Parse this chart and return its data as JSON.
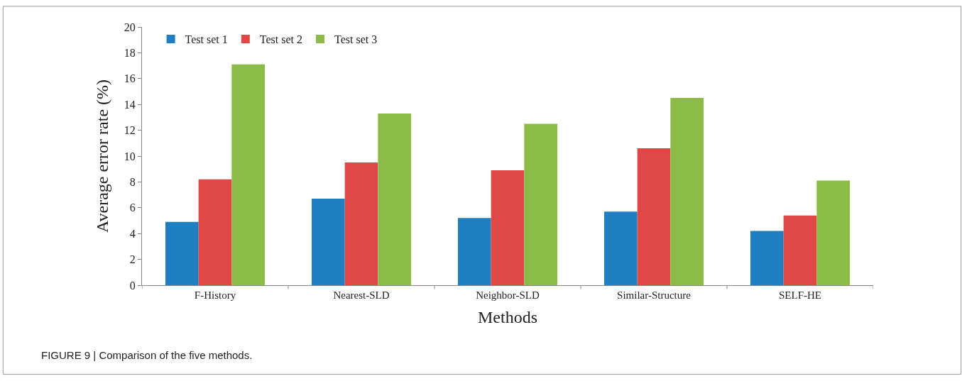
{
  "chart_data": {
    "type": "bar",
    "xlabel": "Methods",
    "ylabel": "Average error rate (%)",
    "categories": [
      "F-History",
      "Nearest-SLD",
      "Neighbor-SLD",
      "Similar-Structure",
      "SELF-HE"
    ],
    "series": [
      {
        "name": "Test set 1",
        "color": "#1f7fc0",
        "values": [
          4.9,
          6.7,
          5.2,
          5.7,
          4.2
        ]
      },
      {
        "name": "Test set 2",
        "color": "#e04848",
        "values": [
          8.2,
          9.5,
          8.9,
          10.6,
          5.4
        ]
      },
      {
        "name": "Test set 3",
        "color": "#8cbb48",
        "values": [
          17.1,
          13.3,
          12.5,
          14.5,
          8.1
        ]
      }
    ],
    "ylim": [
      0,
      20
    ],
    "yticks": [
      0,
      2,
      4,
      6,
      8,
      10,
      12,
      14,
      16,
      18,
      20
    ],
    "legend": "top left",
    "annotations": [
      "FIGURE 9 | Comparison of the five methods."
    ]
  }
}
